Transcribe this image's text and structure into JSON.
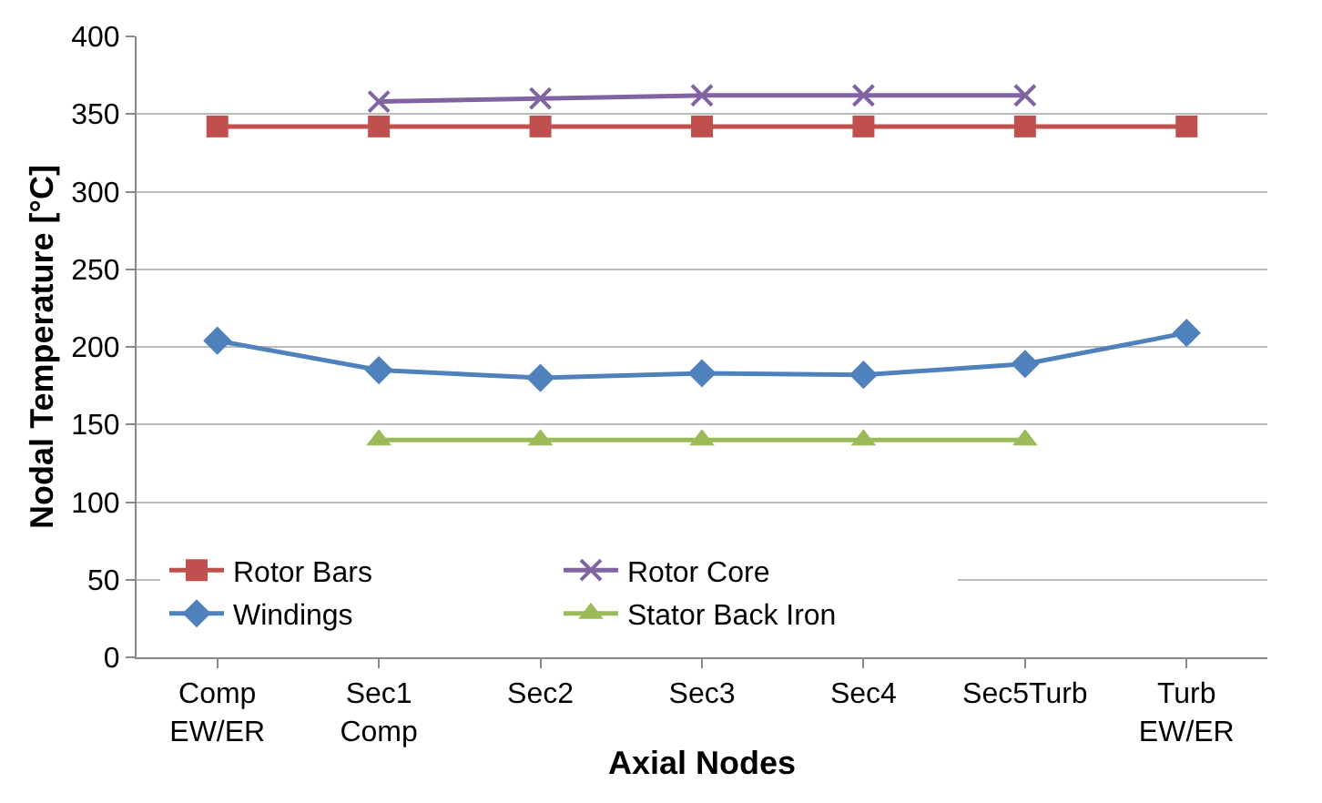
{
  "chart_data": {
    "type": "line",
    "xlabel": "Axial Nodes",
    "ylabel": "Nodal Temperature [°C]",
    "categories": [
      "Comp EW/ER",
      "Sec1 Comp",
      "Sec2",
      "Sec3",
      "Sec4",
      "Sec5Turb",
      "Turb EW/ER"
    ],
    "series": [
      {
        "name": "Rotor Bars",
        "color": "#c0504d",
        "marker": "square",
        "values": [
          342,
          342,
          342,
          342,
          342,
          342,
          342
        ]
      },
      {
        "name": "Rotor Core",
        "color": "#8064a2",
        "marker": "cross",
        "values": [
          null,
          358,
          360,
          362,
          362,
          362,
          null
        ]
      },
      {
        "name": "Windings",
        "color": "#4f81bd",
        "marker": "diamond",
        "values": [
          204,
          185,
          180,
          183,
          182,
          189,
          209
        ]
      },
      {
        "name": "Stator Back Iron",
        "color": "#9bbb59",
        "marker": "triangle",
        "values": [
          null,
          140,
          140,
          140,
          140,
          140,
          null
        ]
      }
    ],
    "ylim": [
      0,
      400
    ],
    "yticks": [
      0,
      50,
      100,
      150,
      200,
      250,
      300,
      350,
      400
    ],
    "grid": "y",
    "legend": "bottom",
    "line_style": "solid"
  }
}
